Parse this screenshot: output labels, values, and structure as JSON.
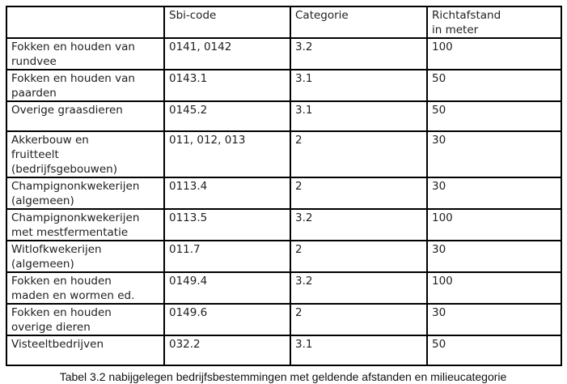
{
  "table": {
    "headers": {
      "activity": "",
      "sbi": "Sbi-code",
      "category": "Categorie",
      "distance": "Richtafstand\nin meter"
    },
    "rows": [
      {
        "activity": "Fokken en houden van\nrundvee",
        "sbi": "0141, 0142",
        "category": "3.2",
        "distance": "100"
      },
      {
        "activity": "Fokken en houden van\npaarden",
        "sbi": "0143.1",
        "category": "3.1",
        "distance": "50"
      },
      {
        "activity": "Overige graasdieren",
        "sbi": "0145.2",
        "category": "3.1",
        "distance": "50"
      },
      {
        "activity": "Akkerbouw en\nfruitteelt\n(bedrijfsgebouwen)",
        "sbi": "011, 012, 013",
        "category": "2",
        "distance": "30"
      },
      {
        "activity": "Champignonkwekerijen\n(algemeen)",
        "sbi": "0113.4",
        "category": "2",
        "distance": "30"
      },
      {
        "activity": "Champignonkwekerijen\nmet mestfermentatie",
        "sbi": "0113.5",
        "category": "3.2",
        "distance": "100"
      },
      {
        "activity": "Witlofkwekerijen\n(algemeen)",
        "sbi": "011.7",
        "category": "2",
        "distance": "30"
      },
      {
        "activity": "Fokken en houden\nmaden en wormen ed.",
        "sbi": "0149.4",
        "category": "3.2",
        "distance": "100"
      },
      {
        "activity": "Fokken en houden\noverige dieren",
        "sbi": "0149.6",
        "category": "2",
        "distance": "30"
      },
      {
        "activity": "Visteeltbedrijven",
        "sbi": "032.2",
        "category": "3.1",
        "distance": "50"
      }
    ]
  },
  "caption": "Tabel 3.2 nabijgelegen bedrijfsbestemmingen met geldende afstanden en milieucategorie"
}
